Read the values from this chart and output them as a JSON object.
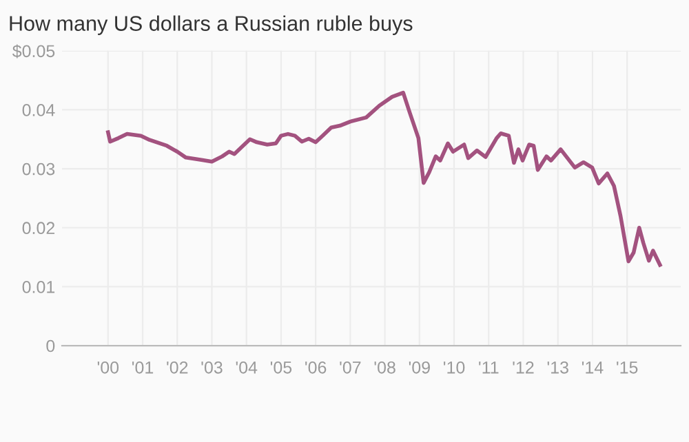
{
  "chart_data": {
    "type": "line",
    "title": "How many US dollars a Russian ruble buys",
    "series": [
      {
        "color": "#a3527f",
        "x": [
          2000.0,
          2000.06,
          2000.3,
          2000.55,
          2000.95,
          2001.2,
          2001.7,
          2002.0,
          2002.25,
          2002.7,
          2003.0,
          2003.3,
          2003.5,
          2003.65,
          2003.9,
          2004.1,
          2004.3,
          2004.6,
          2004.85,
          2005.0,
          2005.2,
          2005.4,
          2005.6,
          2005.8,
          2006.0,
          2006.2,
          2006.45,
          2006.7,
          2007.0,
          2007.46,
          2007.84,
          2008.21,
          2008.53,
          2008.72,
          2008.97,
          2009.12,
          2009.28,
          2009.47,
          2009.6,
          2009.82,
          2009.97,
          2010.29,
          2010.41,
          2010.66,
          2010.91,
          2011.23,
          2011.35,
          2011.58,
          2011.73,
          2011.86,
          2011.98,
          2012.17,
          2012.3,
          2012.42,
          2012.67,
          2012.8,
          2013.08,
          2013.49,
          2013.74,
          2013.99,
          2014.18,
          2014.43,
          2014.62,
          2014.81,
          2015.04,
          2015.19,
          2015.35,
          2015.47,
          2015.63,
          2015.75,
          2015.95
        ],
        "values": [
          0.0362,
          0.0346,
          0.0352,
          0.0359,
          0.0356,
          0.0349,
          0.0339,
          0.0329,
          0.0319,
          0.0315,
          0.0312,
          0.0321,
          0.0329,
          0.0325,
          0.0339,
          0.035,
          0.0345,
          0.0341,
          0.0343,
          0.0356,
          0.0359,
          0.0356,
          0.0346,
          0.0351,
          0.0345,
          0.0356,
          0.037,
          0.0373,
          0.038,
          0.0387,
          0.0407,
          0.0422,
          0.0429,
          0.0395,
          0.0352,
          0.0276,
          0.0294,
          0.0321,
          0.0314,
          0.0343,
          0.0329,
          0.0341,
          0.0318,
          0.0331,
          0.032,
          0.0352,
          0.036,
          0.0356,
          0.031,
          0.0333,
          0.0314,
          0.0341,
          0.0339,
          0.0298,
          0.0321,
          0.0314,
          0.0333,
          0.0302,
          0.0311,
          0.0302,
          0.0275,
          0.0292,
          0.0271,
          0.022,
          0.0143,
          0.0158,
          0.02,
          0.0174,
          0.0144,
          0.0161,
          0.0137
        ]
      }
    ],
    "xlim": [
      1998.67,
      2016.55
    ],
    "xticks": [
      {
        "value": 2000,
        "label": "'00"
      },
      {
        "value": 2001,
        "label": "'01"
      },
      {
        "value": 2002,
        "label": "'02"
      },
      {
        "value": 2003,
        "label": "'03"
      },
      {
        "value": 2004,
        "label": "'04"
      },
      {
        "value": 2005,
        "label": "'05"
      },
      {
        "value": 2006,
        "label": "'06"
      },
      {
        "value": 2007,
        "label": "'07"
      },
      {
        "value": 2008,
        "label": "'08"
      },
      {
        "value": 2009,
        "label": "'09"
      },
      {
        "value": 2010,
        "label": "'10"
      },
      {
        "value": 2011,
        "label": "'11"
      },
      {
        "value": 2012,
        "label": "'12"
      },
      {
        "value": 2013,
        "label": "'13"
      },
      {
        "value": 2014,
        "label": "'14"
      },
      {
        "value": 2015,
        "label": "'15"
      }
    ],
    "ylim": [
      0,
      0.05
    ],
    "yticks": [
      0,
      0.01,
      0.02,
      0.03,
      0.04,
      {
        "value": 0.05,
        "label": "$0.05"
      }
    ],
    "grid": true,
    "legend": false,
    "marker": "none",
    "line_style": "solid"
  }
}
